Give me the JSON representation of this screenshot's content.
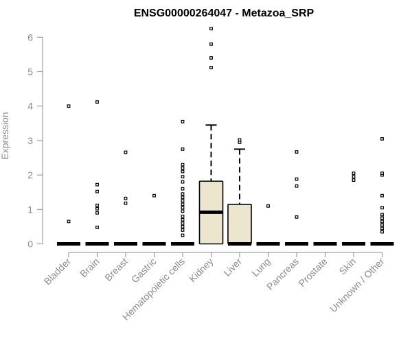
{
  "chart_data": {
    "type": "box",
    "title": "ENSG00000264047 - Metazoa_SRP",
    "xlabel": "",
    "ylabel": "Expression",
    "ylim": [
      0,
      6.2
    ],
    "yticks": [
      0,
      1,
      2,
      3,
      4,
      5,
      6
    ],
    "grid": false,
    "colors": {
      "box_fill": "#ede6cf",
      "axis": "#8a8a8a",
      "ink": "#000000"
    },
    "categories": [
      "Bladder",
      "Brain",
      "Breast",
      "Gastric",
      "Hematopoietic cells",
      "Kidney",
      "Liver",
      "Lung",
      "Pancreas",
      "Prostate",
      "Skin",
      "Unknown / Other"
    ],
    "boxes": [
      {
        "category": "Bladder",
        "q1": 0,
        "median": 0,
        "q3": 0,
        "whisker_low": 0,
        "whisker_high": 0,
        "outliers": [
          0.65,
          4.0
        ]
      },
      {
        "category": "Brain",
        "q1": 0,
        "median": 0,
        "q3": 0,
        "whisker_low": 0,
        "whisker_high": 0,
        "outliers": [
          0.48,
          0.9,
          1.02,
          1.12,
          1.52,
          1.72,
          4.12
        ]
      },
      {
        "category": "Breast",
        "q1": 0,
        "median": 0,
        "q3": 0,
        "whisker_low": 0,
        "whisker_high": 0,
        "outliers": [
          1.18,
          1.32,
          2.66
        ]
      },
      {
        "category": "Gastric",
        "q1": 0,
        "median": 0,
        "q3": 0,
        "whisker_low": 0,
        "whisker_high": 0,
        "outliers": [
          1.4
        ]
      },
      {
        "category": "Hematopoietic cells",
        "q1": 0,
        "median": 0,
        "q3": 0,
        "whisker_low": 0,
        "whisker_high": 0,
        "outliers": [
          0.25,
          0.4,
          0.5,
          0.6,
          0.7,
          0.8,
          0.95,
          1.05,
          1.15,
          1.25,
          1.35,
          1.45,
          1.6,
          1.8,
          1.95,
          2.1,
          2.2,
          2.3,
          2.75,
          3.55
        ]
      },
      {
        "category": "Kidney",
        "q1": 0,
        "median": 0.92,
        "q3": 1.82,
        "whisker_low": 0,
        "whisker_high": 3.45,
        "outliers": [
          5.12,
          5.4,
          5.8,
          6.25
        ]
      },
      {
        "category": "Liver",
        "q1": 0,
        "median": 0,
        "q3": 1.15,
        "whisker_low": 0,
        "whisker_high": 2.75,
        "outliers": [
          2.95,
          3.02
        ]
      },
      {
        "category": "Lung",
        "q1": 0,
        "median": 0,
        "q3": 0,
        "whisker_low": 0,
        "whisker_high": 0,
        "outliers": [
          1.1
        ]
      },
      {
        "category": "Pancreas",
        "q1": 0,
        "median": 0,
        "q3": 0,
        "whisker_low": 0,
        "whisker_high": 0,
        "outliers": [
          0.78,
          1.68,
          1.88,
          2.67
        ]
      },
      {
        "category": "Prostate",
        "q1": 0,
        "median": 0,
        "q3": 0,
        "whisker_low": 0,
        "whisker_high": 0,
        "outliers": []
      },
      {
        "category": "Skin",
        "q1": 0,
        "median": 0,
        "q3": 0,
        "whisker_low": 0,
        "whisker_high": 0,
        "outliers": [
          1.85,
          1.95,
          2.05
        ]
      },
      {
        "category": "Unknown / Other",
        "q1": 0,
        "median": 0,
        "q3": 0,
        "whisker_low": 0,
        "whisker_high": 0,
        "outliers": [
          0.35,
          0.45,
          0.55,
          0.65,
          0.75,
          0.85,
          1.05,
          1.4,
          2.0,
          2.05,
          3.05
        ]
      }
    ]
  }
}
